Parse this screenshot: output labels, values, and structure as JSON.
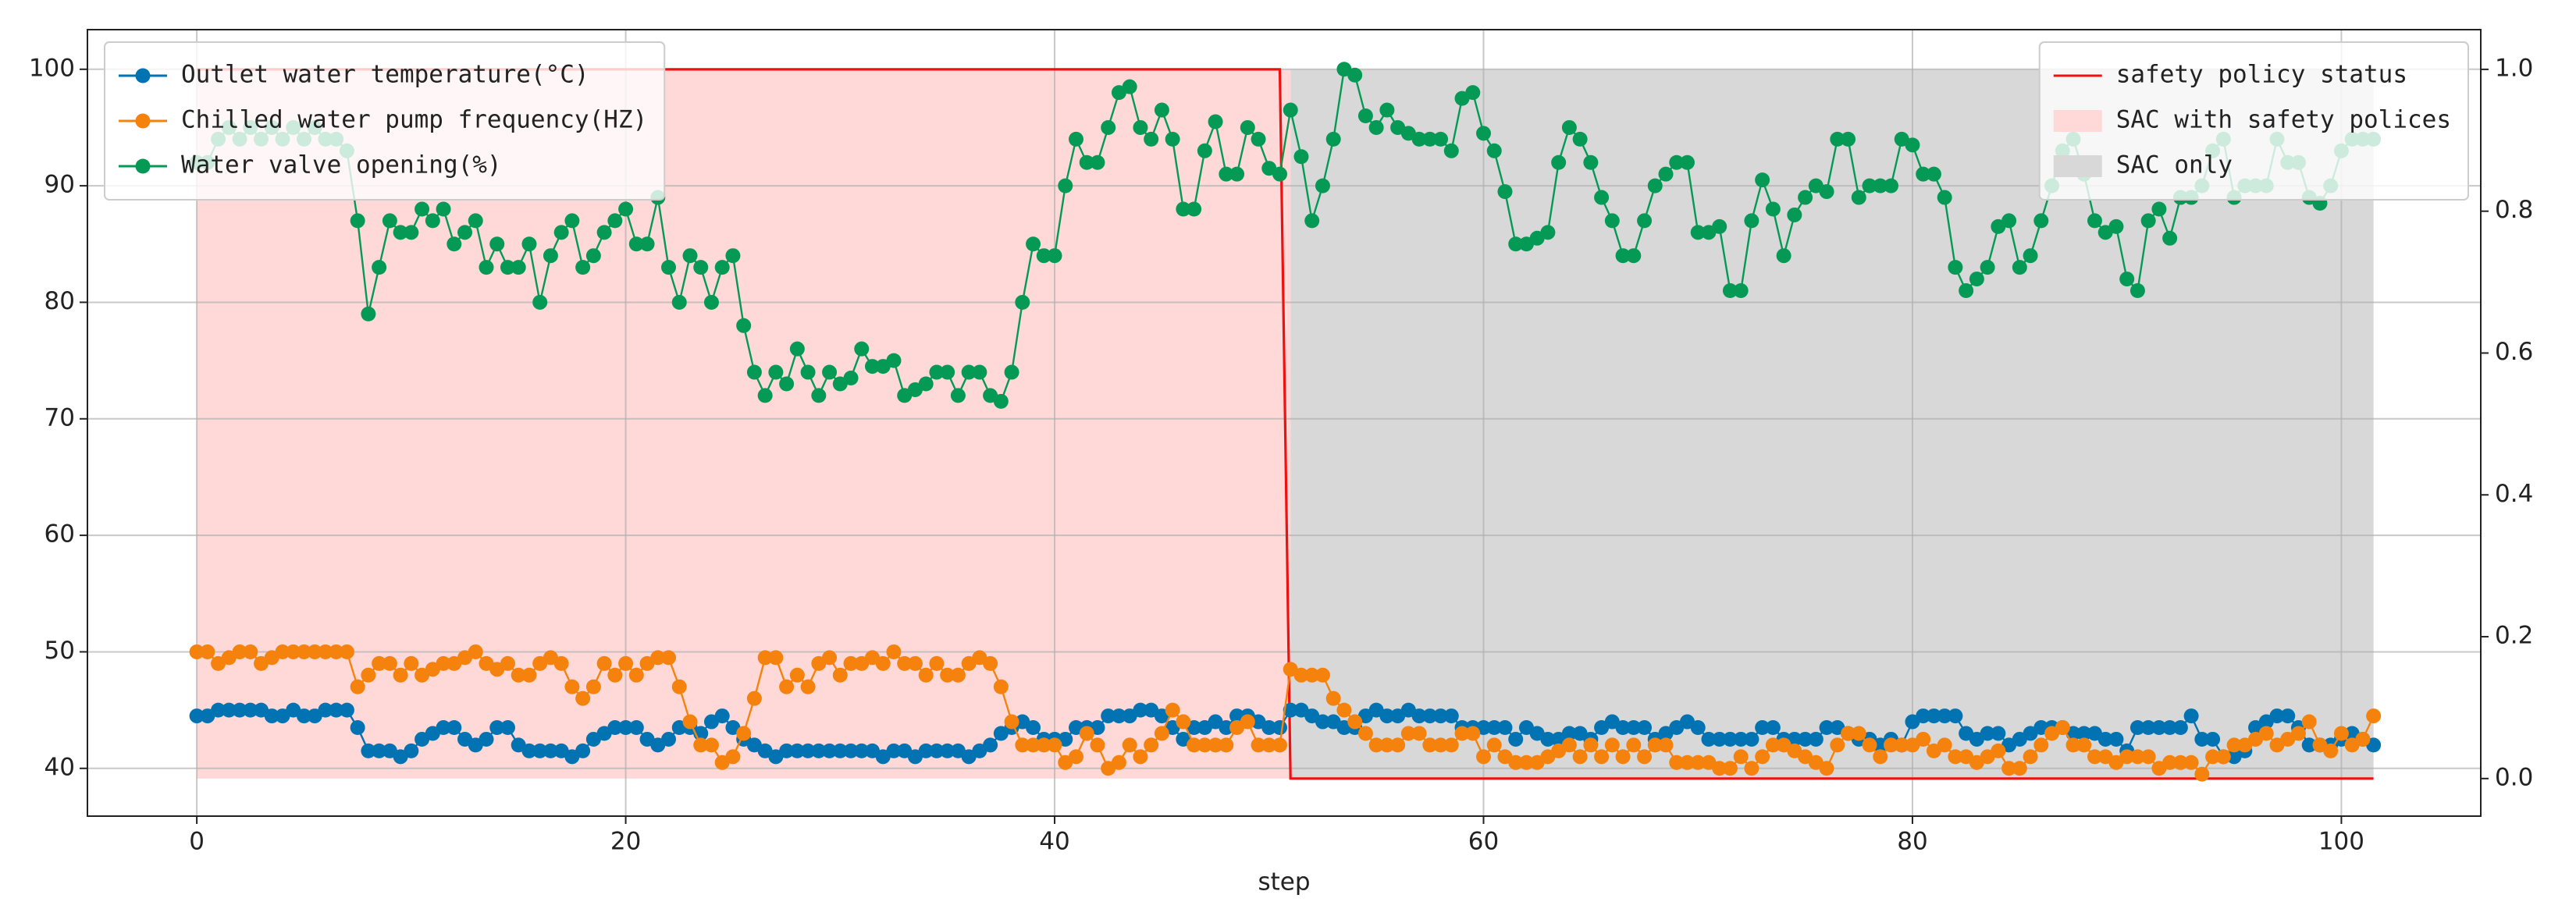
{
  "chart_data": {
    "type": "line",
    "x_label": "step",
    "x": [
      0,
      0.5,
      1,
      1.5,
      2,
      2.5,
      3,
      3.5,
      4,
      4.5,
      5,
      5.5,
      6,
      6.5,
      7,
      7.5,
      8,
      8.5,
      9,
      9.5,
      10,
      10.5,
      11,
      11.5,
      12,
      12.5,
      13,
      13.5,
      14,
      14.5,
      15,
      15.5,
      16,
      16.5,
      17,
      17.5,
      18,
      18.5,
      19,
      19.5,
      20,
      20.5,
      21,
      21.5,
      22,
      22.5,
      23,
      23.5,
      24,
      24.5,
      25,
      25.5,
      26,
      26.5,
      27,
      27.5,
      28,
      28.5,
      29,
      29.5,
      30,
      30.5,
      31,
      31.5,
      32,
      32.5,
      33,
      33.5,
      34,
      34.5,
      35,
      35.5,
      36,
      36.5,
      37,
      37.5,
      38,
      38.5,
      39,
      39.5,
      40,
      40.5,
      41,
      41.5,
      42,
      42.5,
      43,
      43.5,
      44,
      44.5,
      45,
      45.5,
      46,
      46.5,
      47,
      47.5,
      48,
      48.5,
      49,
      49.5,
      50,
      50.5,
      51,
      51.5,
      52,
      52.5,
      53,
      53.5,
      54,
      54.5,
      55,
      55.5,
      56,
      56.5,
      57,
      57.5,
      58,
      58.5,
      59,
      59.5,
      60,
      60.5,
      61,
      61.5,
      62,
      62.5,
      63,
      63.5,
      64,
      64.5,
      65,
      65.5,
      66,
      66.5,
      67,
      67.5,
      68,
      68.5,
      69,
      69.5,
      70,
      70.5,
      71,
      71.5,
      72,
      72.5,
      73,
      73.5,
      74,
      74.5,
      75,
      75.5,
      76,
      76.5,
      77,
      77.5,
      78,
      78.5,
      79,
      79.5,
      80,
      80.5,
      81,
      81.5,
      82,
      82.5,
      83,
      83.5,
      84,
      84.5,
      85,
      85.5,
      86,
      86.5,
      87,
      87.5,
      88,
      88.5,
      89,
      89.5,
      90,
      90.5,
      91,
      91.5,
      92,
      92.5,
      93,
      93.5,
      94,
      94.5,
      95,
      95.5,
      96,
      96.5,
      97,
      97.5,
      98,
      98.5,
      99,
      99.5,
      100,
      100.5,
      101,
      101.5
    ],
    "series": [
      {
        "name": "Outlet water temperature(°C)",
        "color": "#0173b2",
        "marker": true,
        "values": [
          44.5,
          44.5,
          45,
          45,
          45,
          45,
          45,
          44.5,
          44.5,
          45,
          44.5,
          44.5,
          45,
          45,
          45,
          43.5,
          41.5,
          41.5,
          41.5,
          41,
          41.5,
          42.5,
          43,
          43.5,
          43.5,
          42.5,
          42,
          42.5,
          43.5,
          43.5,
          42,
          41.5,
          41.5,
          41.5,
          41.5,
          41,
          41.5,
          42.5,
          43,
          43.5,
          43.5,
          43.5,
          42.5,
          42,
          42.5,
          43.5,
          43.5,
          43,
          44,
          44.5,
          43.5,
          42.5,
          42,
          41.5,
          41,
          41.5,
          41.5,
          41.5,
          41.5,
          41.5,
          41.5,
          41.5,
          41.5,
          41.5,
          41,
          41.5,
          41.5,
          41,
          41.5,
          41.5,
          41.5,
          41.5,
          41,
          41.5,
          42,
          43,
          43.5,
          44,
          43.5,
          42.5,
          42.5,
          42.5,
          43.5,
          43.5,
          43.5,
          44.5,
          44.5,
          44.5,
          45,
          45,
          44.5,
          43.5,
          42.5,
          43.5,
          43.5,
          44,
          43.5,
          44.5,
          44.5,
          44,
          43.5,
          43.5,
          45,
          45,
          44.5,
          44,
          44,
          43.5,
          43.5,
          44.5,
          45,
          44.5,
          44.5,
          45,
          44.5,
          44.5,
          44.5,
          44.5,
          43.5,
          43.5,
          43.5,
          43.5,
          43.5,
          42.5,
          43.5,
          43,
          42.5,
          42.5,
          43,
          43,
          42.5,
          43.5,
          44,
          43.5,
          43.5,
          43.5,
          42.5,
          43,
          43.5,
          44,
          43.5,
          42.5,
          42.5,
          42.5,
          42.5,
          42.5,
          43.5,
          43.5,
          42.5,
          42.5,
          42.5,
          42.5,
          43.5,
          43.5,
          43,
          42.5,
          42.5,
          42,
          42.5,
          42,
          44,
          44.5,
          44.5,
          44.5,
          44.5,
          43,
          42.5,
          43,
          43,
          42,
          42.5,
          43,
          43.5,
          43.5,
          43.5,
          43,
          43,
          43,
          42.5,
          42.5,
          41.5,
          43.5,
          43.5,
          43.5,
          43.5,
          43.5,
          44.5,
          42.5,
          42.5,
          41,
          41,
          41.5,
          43.5,
          44,
          44.5,
          44.5,
          43.5,
          42,
          42,
          42,
          42.5,
          43,
          42.5,
          42
        ]
      },
      {
        "name": "Chilled water pump frequency(HZ)",
        "color": "#f5820d",
        "marker": true,
        "values": [
          50,
          50,
          49,
          49.5,
          50,
          50,
          49,
          49.5,
          50,
          50,
          50,
          50,
          50,
          50,
          50,
          47,
          48,
          49,
          49,
          48,
          49,
          48,
          48.5,
          49,
          49,
          49.5,
          50,
          49,
          48.5,
          49,
          48,
          48,
          49,
          49.5,
          49,
          47,
          46,
          47,
          49,
          48,
          49,
          48,
          49,
          49.5,
          49.5,
          47,
          44,
          42,
          42,
          40.5,
          41,
          43,
          46,
          49.5,
          49.5,
          47,
          48,
          47,
          49,
          49.5,
          48,
          49,
          49,
          49.5,
          49,
          50,
          49,
          49,
          48,
          49,
          48,
          48,
          49,
          49.5,
          49,
          47,
          44,
          42,
          42,
          42,
          42,
          40.5,
          41,
          43,
          42,
          40,
          40.5,
          42,
          41,
          42,
          43,
          45,
          44,
          42,
          42,
          42,
          42,
          43.5,
          44,
          42,
          42,
          42,
          48.5,
          48,
          48,
          48,
          46,
          45,
          44,
          43,
          42,
          42,
          42,
          43,
          43,
          42,
          42,
          42,
          43,
          43,
          41,
          42,
          41,
          40.5,
          40.5,
          40.5,
          41,
          41.5,
          42,
          41,
          42,
          41,
          42,
          41,
          42,
          41,
          42,
          42,
          40.5,
          40.5,
          40.5,
          40.5,
          40,
          40,
          41,
          40,
          41,
          42,
          42,
          41.5,
          41,
          40.5,
          40,
          42,
          43,
          43,
          42,
          41,
          42,
          42,
          42,
          42.5,
          41.5,
          42,
          41,
          41,
          40.5,
          41,
          41.5,
          40,
          40,
          41,
          42,
          43,
          43.5,
          42,
          42,
          41,
          41,
          40.5,
          41,
          41,
          41,
          40,
          40.5,
          40.5,
          40.5,
          39.5,
          41,
          41,
          42,
          42,
          42.5,
          43,
          42,
          42.5,
          43,
          44,
          42,
          41.5,
          43,
          42,
          42.5,
          44.5
        ]
      },
      {
        "name": "Water valve opening(%)",
        "color": "#049a55",
        "marker": true,
        "values": [
          92,
          92,
          94,
          95,
          94,
          95,
          94,
          95,
          94,
          95,
          94,
          95,
          94,
          94,
          93,
          87,
          79,
          83,
          87,
          86,
          86,
          88,
          87,
          88,
          85,
          86,
          87,
          83,
          85,
          83,
          83,
          85,
          80,
          84,
          86,
          87,
          83,
          84,
          86,
          87,
          88,
          85,
          85,
          89,
          83,
          80,
          84,
          83,
          80,
          83,
          84,
          78,
          74,
          72,
          74,
          73,
          76,
          74,
          72,
          74,
          73,
          73.5,
          76,
          74.5,
          74.5,
          75,
          72,
          72.5,
          73,
          74,
          74,
          72,
          74,
          74,
          72,
          71.5,
          74,
          80,
          85,
          84,
          84,
          90,
          94,
          92,
          92,
          95,
          98,
          98.5,
          95,
          94,
          96.5,
          94,
          88,
          88,
          93,
          95.5,
          91,
          91,
          95,
          94,
          91.5,
          91,
          96.5,
          92.5,
          87,
          90,
          94,
          100,
          99.5,
          96,
          95,
          96.5,
          95,
          94.5,
          94,
          94,
          94,
          93,
          97.5,
          98,
          94.5,
          93,
          89.5,
          85,
          85,
          85.5,
          86,
          92,
          95,
          94,
          92,
          89,
          87,
          84,
          84,
          87,
          90,
          91,
          92,
          92,
          86,
          86,
          86.5,
          81,
          81,
          87,
          90.5,
          88,
          84,
          87.5,
          89,
          90,
          89.5,
          94,
          94,
          89,
          90,
          90,
          90,
          94,
          93.5,
          91,
          91,
          89,
          83,
          81,
          82,
          83,
          86.5,
          87,
          83,
          84,
          87,
          90,
          93,
          94,
          91,
          87,
          86,
          86.5,
          82,
          81,
          87,
          88,
          85.5,
          89,
          89,
          90,
          93,
          94,
          89,
          90,
          90,
          90,
          94,
          92,
          92,
          89,
          88.5,
          90,
          93,
          94,
          94,
          94
        ]
      },
      {
        "name": "safety policy status",
        "color": "#ee1111",
        "axis": "y2",
        "marker": false,
        "x": [
          0,
          50.5,
          51,
          101.5
        ],
        "values": [
          1,
          1,
          0,
          0
        ]
      }
    ],
    "regions": [
      {
        "name": "SAC with safety polices",
        "color": "#ffd8d8",
        "x": [
          0,
          51
        ],
        "y2": [
          0,
          1
        ]
      },
      {
        "name": "SAC only",
        "color": "#d8d8d8",
        "x": [
          51,
          101.5
        ],
        "y2": [
          0,
          1
        ]
      }
    ],
    "xlim": [
      -5.1,
      106.5
    ],
    "xticks": [
      0,
      20,
      40,
      60,
      80,
      100
    ],
    "ylim": [
      35.9,
      103.4
    ],
    "yticks": [
      40,
      50,
      60,
      70,
      80,
      90,
      100
    ],
    "y2lim": [
      -0.053,
      1.056
    ],
    "y2ticks": [
      {
        "value": 0,
        "label": "0.0"
      },
      0.2,
      0.4,
      0.6,
      0.8,
      {
        "value": 1,
        "label": "1.0"
      }
    ],
    "grid": true,
    "legend_loc": "upper left",
    "legend2_loc": "upper right"
  }
}
